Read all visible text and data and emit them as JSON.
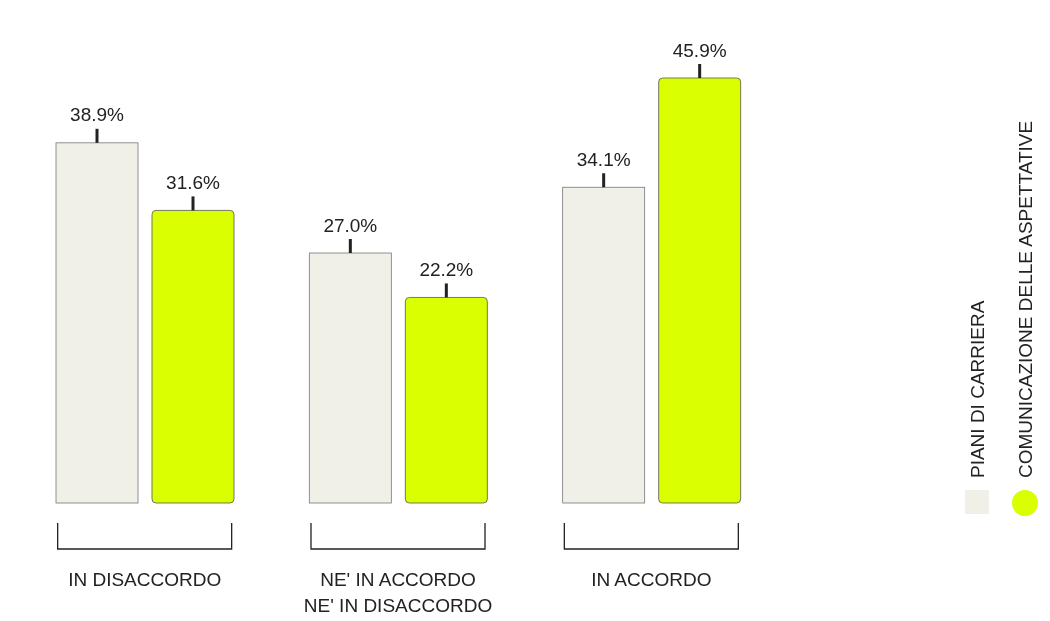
{
  "chart_data": {
    "type": "bar",
    "categories": [
      "IN DISACCORDO",
      "NE' IN ACCORDO NE' IN DISACCORDO",
      "IN ACCORDO"
    ],
    "series": [
      {
        "name": "PIANI DI CARRIERA",
        "color": "#f0f0e8",
        "values": [
          38.9,
          27.0,
          34.1
        ],
        "value_labels": [
          "38.9%",
          "27.0%",
          "34.1%"
        ]
      },
      {
        "name": "COMUNICAZIONE DELLE ASPETTATIVE",
        "color": "#d9ff00",
        "values": [
          31.6,
          22.2,
          45.9
        ],
        "value_labels": [
          "31.6%",
          "22.2%",
          "45.9%"
        ]
      }
    ],
    "legend": "right"
  }
}
